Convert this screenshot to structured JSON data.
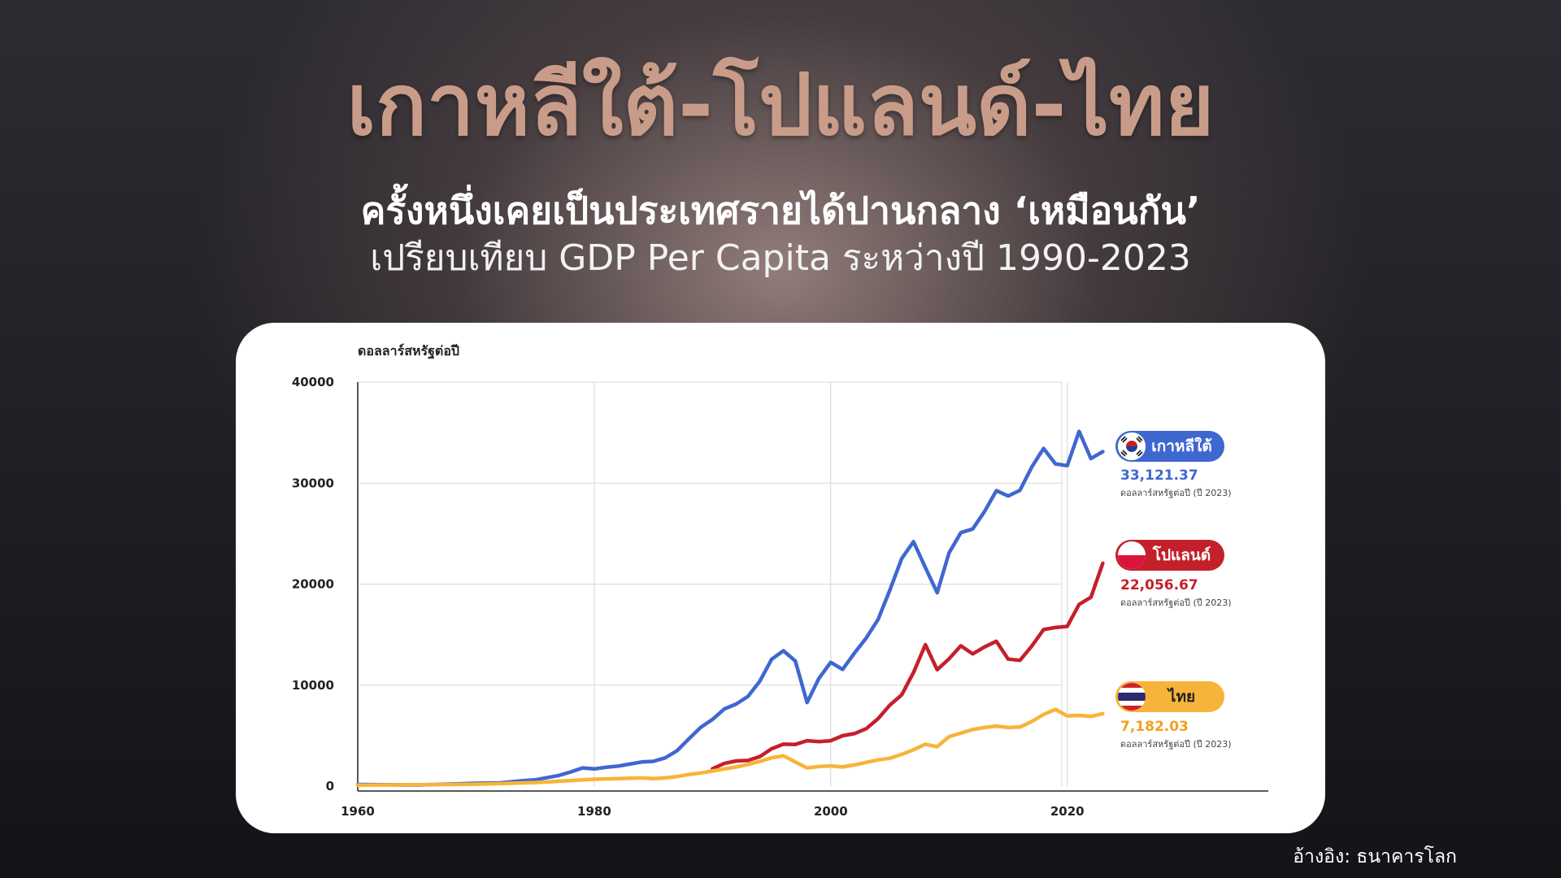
{
  "header": {
    "title": "เกาหลีใต้-โปแลนด์-ไทย",
    "subtitle": "ครั้งหนึ่งเคยเป็นประเทศรายได้ปานกลาง ‘เหมือนกัน’",
    "subtitle2": "เปรียบเทียบ GDP Per Capita ระหว่างปี 1990-2023"
  },
  "source": "อ้างอิง: ธนาคารโลก",
  "colors": {
    "korea": "#3f67d0",
    "poland": "#c4202c",
    "thailand": "#f7b43a",
    "title": "#c99c8a"
  },
  "legend": [
    {
      "name": "เกาหลีใต้",
      "value": "33,121.37",
      "unit": "ดอลลาร์สหรัฐต่อปี (ปี 2023)",
      "flag_icon": "south-korea-flag-icon"
    },
    {
      "name": "โปแลนด์",
      "value": "22,056.67",
      "unit": "ดอลลาร์สหรัฐต่อปี (ปี 2023)",
      "flag_icon": "poland-flag-icon"
    },
    {
      "name": "ไทย",
      "value": "7,182.03",
      "unit": "ดอลลาร์สหรัฐต่อปี (ปี 2023)",
      "flag_icon": "thailand-flag-icon"
    }
  ],
  "chart_data": {
    "type": "line",
    "title": "",
    "ylabel": "ดอลลาร์สหรัฐต่อปี",
    "xlabel": "",
    "xlim": [
      1960,
      2037
    ],
    "ylim": [
      0,
      40000
    ],
    "xticks": [
      "1960",
      "1980",
      "2000",
      "2020"
    ],
    "yticks": [
      "0",
      "10000",
      "20000",
      "30000",
      "40000"
    ],
    "grid": true,
    "legend_position": "right",
    "series": [
      {
        "name": "เกาหลีใต้",
        "color": "#3f67d0",
        "x": [
          1960,
          1965,
          1970,
          1972,
          1974,
          1975,
          1976,
          1977,
          1978,
          1979,
          1980,
          1981,
          1982,
          1983,
          1984,
          1985,
          1986,
          1987,
          1988,
          1989,
          1990,
          1991,
          1992,
          1993,
          1994,
          1995,
          1996,
          1997,
          1998,
          1999,
          2000,
          2001,
          2002,
          2003,
          2004,
          2005,
          2006,
          2007,
          2008,
          2009,
          2010,
          2011,
          2012,
          2013,
          2014,
          2015,
          2016,
          2017,
          2018,
          2019,
          2020,
          2021,
          2022,
          2023
        ],
        "y": [
          158,
          109,
          279,
          324,
          541,
          617,
          833,
          1053,
          1400,
          1800,
          1704,
          1870,
          1982,
          2180,
          2390,
          2457,
          2803,
          3500,
          4686,
          5817,
          6610,
          7637,
          8127,
          8885,
          10385,
          12565,
          13403,
          12398,
          8282,
          10672,
          12257,
          11561,
          13165,
          14673,
          16496,
          19403,
          22539,
          24198,
          21635,
          19144,
          23087,
          25098,
          25459,
          27180,
          29250,
          28724,
          29287,
          31601,
          33429,
          31902,
          31727,
          35126,
          32423,
          33121
        ]
      },
      {
        "name": "โปแลนด์",
        "color": "#c4202c",
        "x": [
          1990,
          1991,
          1992,
          1993,
          1994,
          1995,
          1996,
          1997,
          1998,
          1999,
          2000,
          2001,
          2002,
          2003,
          2004,
          2005,
          2006,
          2007,
          2008,
          2009,
          2010,
          2011,
          2012,
          2013,
          2014,
          2015,
          2016,
          2017,
          2018,
          2019,
          2020,
          2021,
          2022,
          2023
        ],
        "y": [
          1731,
          2245,
          2497,
          2540,
          2918,
          3700,
          4150,
          4130,
          4500,
          4404,
          4501,
          4986,
          5196,
          5693,
          6681,
          8021,
          9036,
          11255,
          14001,
          11527,
          12600,
          13894,
          13098,
          13780,
          14341,
          12578,
          12447,
          13864,
          15505,
          15700,
          15816,
          18000,
          18700,
          22057
        ]
      },
      {
        "name": "ไทย",
        "color": "#f7b43a",
        "x": [
          1960,
          1965,
          1970,
          1975,
          1980,
          1982,
          1984,
          1985,
          1986,
          1987,
          1988,
          1989,
          1990,
          1991,
          1992,
          1993,
          1994,
          1995,
          1996,
          1997,
          1998,
          1999,
          2000,
          2001,
          2002,
          2003,
          2004,
          2005,
          2006,
          2007,
          2008,
          2009,
          2010,
          2011,
          2012,
          2013,
          2014,
          2015,
          2016,
          2017,
          2018,
          2019,
          2020,
          2021,
          2022,
          2023
        ],
        "y": [
          101,
          139,
          194,
          353,
          683,
          750,
          810,
          750,
          810,
          950,
          1150,
          1300,
          1500,
          1700,
          1900,
          2150,
          2450,
          2800,
          3000,
          2400,
          1800,
          1950,
          2000,
          1900,
          2100,
          2350,
          2600,
          2750,
          3150,
          3600,
          4150,
          3900,
          4900,
          5250,
          5600,
          5800,
          5950,
          5800,
          5850,
          6400,
          7100,
          7600,
          6950,
          7000,
          6900,
          7182
        ]
      }
    ]
  }
}
